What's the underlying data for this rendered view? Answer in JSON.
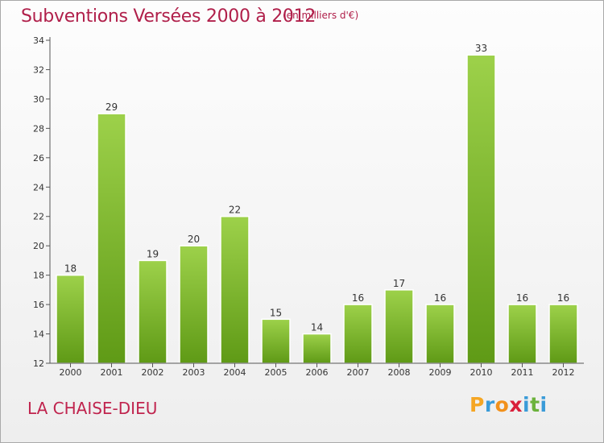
{
  "header": {
    "title": "Subventions Versées 2000 à 2012",
    "subtitle": "(en milliers d'€)"
  },
  "footer": {
    "place": "LA CHAISE-DIEU",
    "logo_letters": [
      "P",
      "r",
      "o",
      "x",
      "i",
      "t",
      "i"
    ],
    "logo_colors": [
      "#f5a623",
      "#3a9bd8",
      "#f2911b",
      "#d9203b",
      "#3a9bd8",
      "#6cb23c",
      "#3a9bd8"
    ]
  },
  "colors": {
    "bar_light": "#9dd14a",
    "bar_dark": "#5f9a16",
    "title": "#b01f4a",
    "axis": "#555555"
  },
  "chart_data": {
    "type": "bar",
    "title": "Subventions Versées 2000 à 2012",
    "subtitle": "(en milliers d'€)",
    "xlabel": "",
    "ylabel": "",
    "categories": [
      "2000",
      "2001",
      "2002",
      "2003",
      "2004",
      "2005",
      "2006",
      "2007",
      "2008",
      "2009",
      "2010",
      "2011",
      "2012"
    ],
    "values": [
      18,
      29,
      19,
      20,
      22,
      15,
      14,
      16,
      17,
      16,
      33,
      16,
      16
    ],
    "ylim": [
      12,
      34
    ],
    "yticks": [
      12,
      14,
      16,
      18,
      20,
      22,
      24,
      26,
      28,
      30,
      32,
      34
    ],
    "grid": false,
    "data_labels": true
  }
}
